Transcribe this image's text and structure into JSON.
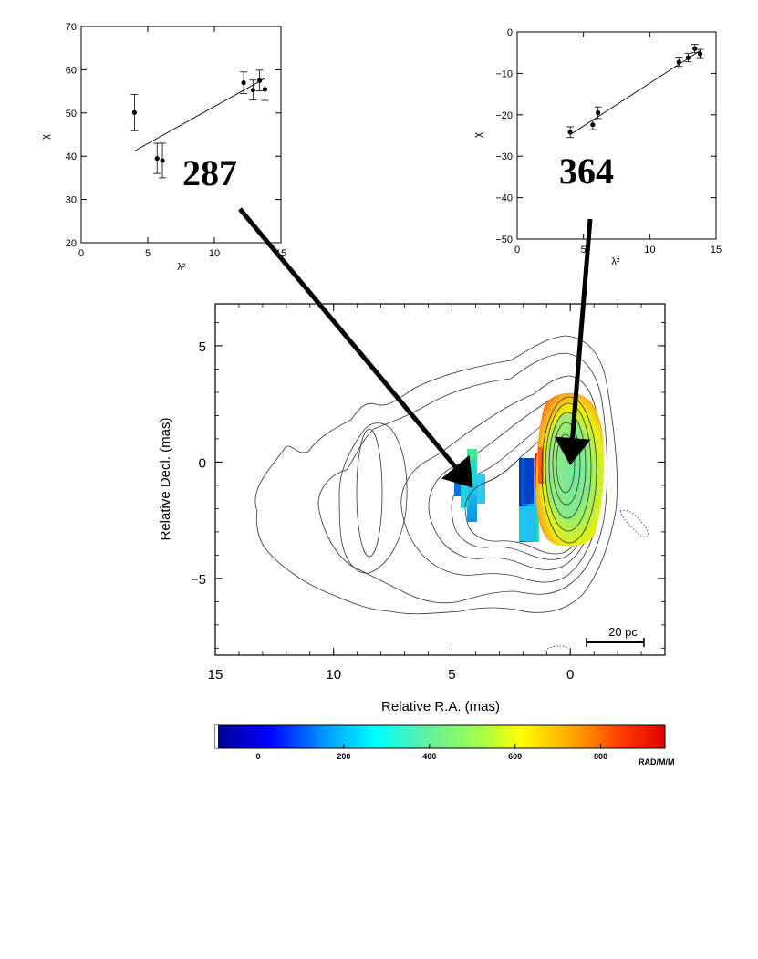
{
  "chart_data": [
    {
      "type": "scatter",
      "annotation": "287",
      "xlabel": "λ²",
      "ylabel": "χ",
      "xlim": [
        0,
        15
      ],
      "ylim": [
        20,
        70
      ],
      "x_ticks": [
        "0",
        "5",
        "10",
        "15"
      ],
      "y_ticks": [
        "20",
        "30",
        "40",
        "50",
        "60",
        "70"
      ],
      "points": [
        {
          "x": 4.0,
          "y": 50.1,
          "err": 4.2
        },
        {
          "x": 5.7,
          "y": 39.5,
          "err": 3.5
        },
        {
          "x": 6.1,
          "y": 39.0,
          "err": 4.0
        },
        {
          "x": 12.2,
          "y": 57.0,
          "err": 2.5
        },
        {
          "x": 12.9,
          "y": 55.3,
          "err": 2.3
        },
        {
          "x": 13.4,
          "y": 57.5,
          "err": 2.4
        },
        {
          "x": 13.8,
          "y": 55.5,
          "err": 2.6
        }
      ],
      "fit": {
        "x": [
          4.0,
          13.8
        ],
        "y": [
          41.2,
          58.0
        ]
      }
    },
    {
      "type": "scatter",
      "annotation": "364",
      "xlabel": "λ²",
      "ylabel": "χ",
      "xlim": [
        0,
        15
      ],
      "ylim": [
        -50,
        0
      ],
      "x_ticks": [
        "0",
        "5",
        "10",
        "15"
      ],
      "y_ticks": [
        "−50",
        "−40",
        "−30",
        "−20",
        "−10",
        "0"
      ],
      "points": [
        {
          "x": 4.0,
          "y": -24.2,
          "err": 1.3
        },
        {
          "x": 5.7,
          "y": -22.4,
          "err": 1.2
        },
        {
          "x": 6.1,
          "y": -19.5,
          "err": 1.4
        },
        {
          "x": 12.2,
          "y": -7.3,
          "err": 1.0
        },
        {
          "x": 12.9,
          "y": -6.2,
          "err": 1.0
        },
        {
          "x": 13.4,
          "y": -4.0,
          "err": 1.0
        },
        {
          "x": 13.8,
          "y": -5.3,
          "err": 1.1
        }
      ],
      "fit": {
        "x": [
          4.0,
          13.8
        ],
        "y": [
          -24.8,
          -4.5
        ]
      }
    },
    {
      "type": "heatmap",
      "xlabel": "Relative R.A. (mas)",
      "ylabel": "Relative Decl. (mas)",
      "xlim": [
        15,
        -4
      ],
      "ylim": [
        -8.3,
        6.8
      ],
      "x_ticks": [
        "15",
        "10",
        "5",
        "0"
      ],
      "y_ticks": [
        "−5",
        "0",
        "5"
      ],
      "scalebar_label": "20 pc",
      "colorbar": {
        "range": [
          -100,
          950
        ],
        "ticks": [
          "0",
          "200",
          "400",
          "600",
          "800"
        ],
        "unit": "RAD/M/M"
      },
      "rm_regions": [
        {
          "x": 4.1,
          "y": -1.8,
          "value": 287
        },
        {
          "x": 0.0,
          "y": -0.5,
          "value": 364
        }
      ]
    }
  ]
}
